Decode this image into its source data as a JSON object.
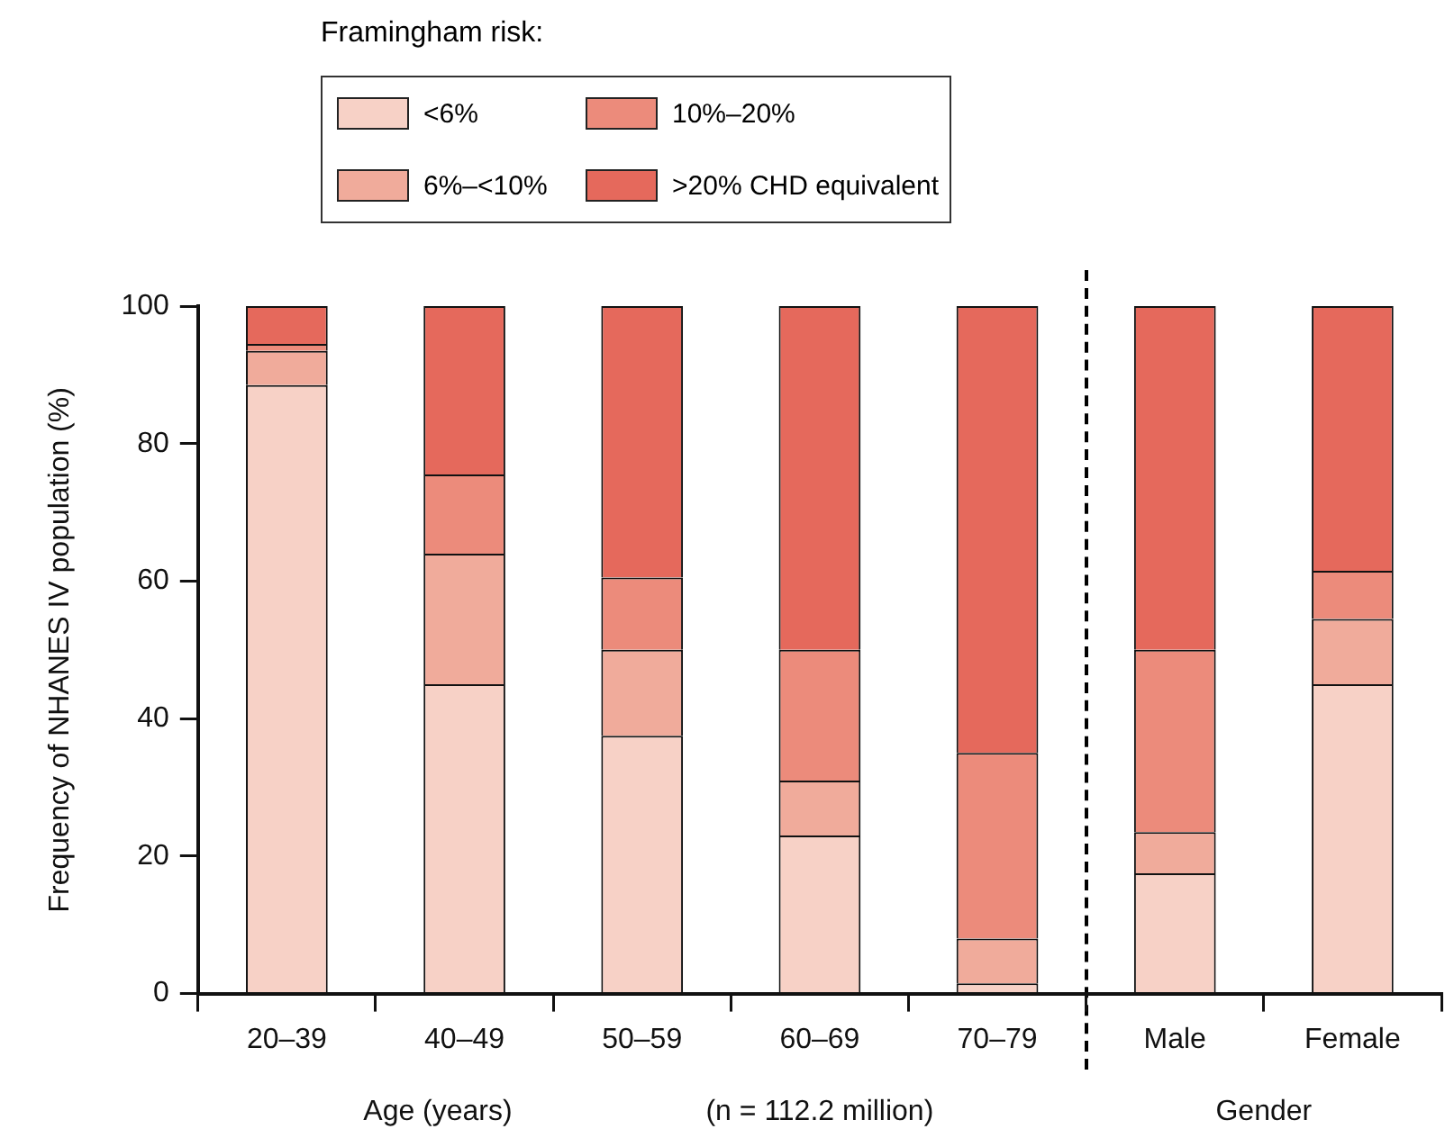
{
  "chart_data": {
    "type": "bar",
    "stacked": true,
    "legend": "top",
    "legend_title": "Framingham risk:",
    "ylabel": "Frequency of NHANES IV population (%)",
    "xlabel": "Age (years)",
    "annotations": [
      "(n = 112.2 million)",
      "Gender"
    ],
    "categories": [
      "20–39",
      "40–49",
      "50–59",
      "60–69",
      "70–79",
      "Male",
      "Female"
    ],
    "ylim": [
      0,
      100
    ],
    "yticks": [
      0,
      20,
      40,
      60,
      80,
      100
    ],
    "grid": false,
    "series": [
      {
        "name": "<6%",
        "color": "#f7d1c6",
        "values": [
          88.5,
          45,
          37.5,
          23,
          1.5,
          17.5,
          45
        ]
      },
      {
        "name": "6%–<10%",
        "color": "#f0ab9b",
        "values": [
          5,
          19,
          12.5,
          8,
          6.5,
          6,
          9.5
        ]
      },
      {
        "name": "10%–20%",
        "color": "#ec8b7b",
        "values": [
          1,
          11.5,
          10.5,
          19,
          27,
          26.5,
          7
        ]
      },
      {
        "name": ">20% CHD equivalent",
        "color": "#e5695c",
        "values": [
          5.5,
          24.5,
          39.5,
          50,
          65,
          50,
          38.5
        ]
      }
    ]
  }
}
